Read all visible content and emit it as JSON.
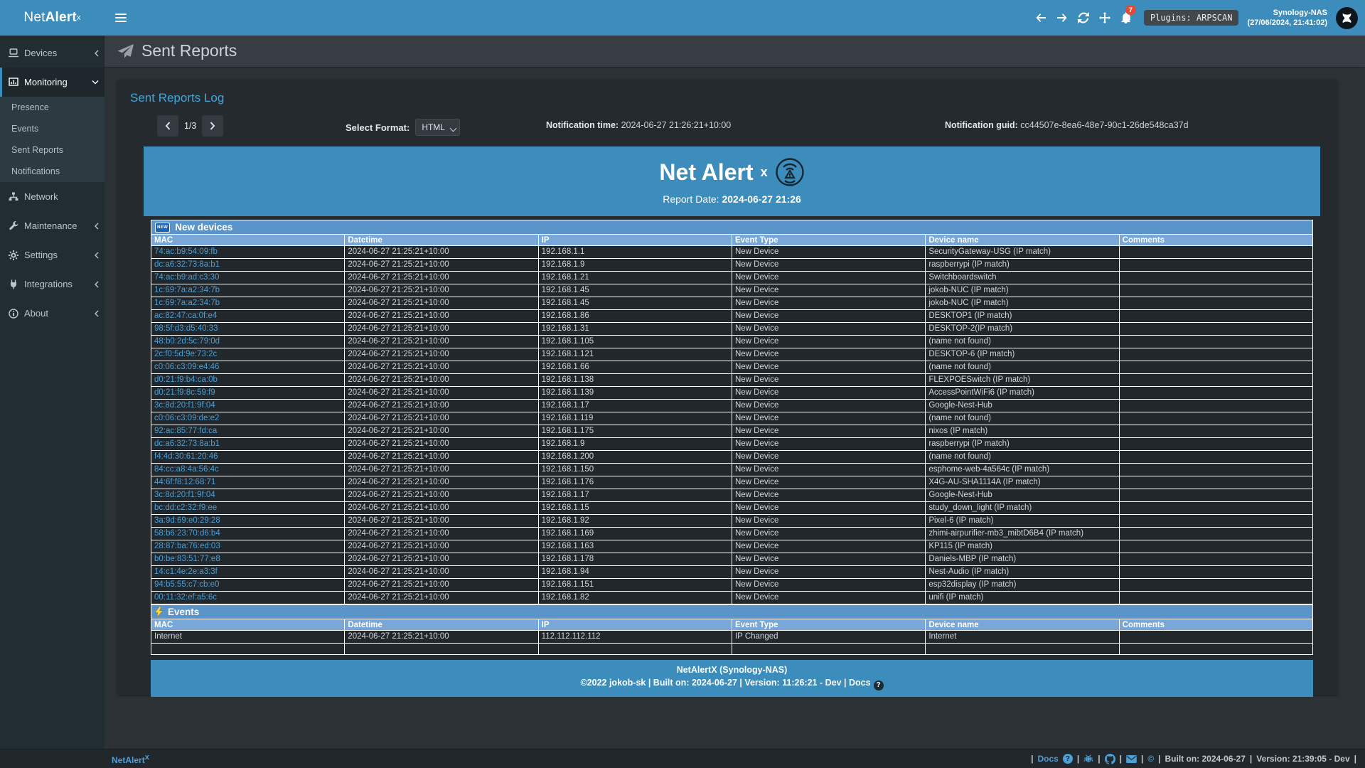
{
  "colors": {
    "accent": "#3c8dbc",
    "link_blue": "#4d9fd6",
    "section_header_bg": "#5b94c9",
    "table_header_bg": "#78a7d8",
    "badge_red": "#dd4b39"
  },
  "topbar": {
    "brand_pre": "Net",
    "brand_bold": "Alert",
    "brand_sup": "x",
    "notification_count": "7",
    "plugins_badge": "Plugins: ARPSCAN",
    "host_name": "Synology-NAS",
    "host_time": "(27/06/2024, 21:41:02)"
  },
  "sidebar": {
    "items": [
      {
        "label": "Devices"
      },
      {
        "label": "Monitoring"
      },
      {
        "label": "Network"
      },
      {
        "label": "Maintenance"
      },
      {
        "label": "Settings"
      },
      {
        "label": "Integrations"
      },
      {
        "label": "About"
      }
    ],
    "monitoring_submenu": [
      {
        "label": "Presence"
      },
      {
        "label": "Events"
      },
      {
        "label": "Sent Reports"
      },
      {
        "label": "Notifications"
      }
    ]
  },
  "page": {
    "title": "Sent Reports",
    "box_title": "Sent Reports Log",
    "pagination": "1/3",
    "select_format_label": "Select Format:",
    "format_value": "HTML",
    "notification_time_label": "Notification time:",
    "notification_time_value": "2024-06-27 21:26:21+10:00",
    "notification_guid_label": "Notification guid:",
    "notification_guid_value": "cc44507e-8ea6-48e7-90c1-26de548ca37d"
  },
  "report": {
    "title_main": "Net Alert",
    "title_sup": "x",
    "date_label": "Report Date:",
    "date_value": "2024-06-27 21:26",
    "columns": [
      "MAC",
      "Datetime",
      "IP",
      "Event Type",
      "Device name",
      "Comments"
    ],
    "new_devices": {
      "section_title": "New devices",
      "badge": "NEW",
      "rows": [
        [
          "74:ac:b9:54:09:fb",
          "2024-06-27 21:25:21+10:00",
          "192.168.1.1",
          "New Device",
          "SecurityGateway-USG (IP match)",
          ""
        ],
        [
          "dc:a6:32:73:8a:b1",
          "2024-06-27 21:25:21+10:00",
          "192.168.1.9",
          "New Device",
          "raspberrypi (IP match)",
          ""
        ],
        [
          "74:ac:b9:ad:c3:30",
          "2024-06-27 21:25:21+10:00",
          "192.168.1.21",
          "New Device",
          "Switchboardswitch",
          ""
        ],
        [
          "1c:69:7a:a2:34:7b",
          "2024-06-27 21:25:21+10:00",
          "192.168.1.45",
          "New Device",
          "jokob-NUC (IP match)",
          ""
        ],
        [
          "1c:69:7a:a2:34:7b",
          "2024-06-27 21:25:21+10:00",
          "192.168.1.45",
          "New Device",
          "jokob-NUC (IP match)",
          ""
        ],
        [
          "ac:82:47:ca:0f:e4",
          "2024-06-27 21:25:21+10:00",
          "192.168.1.86",
          "New Device",
          "DESKTOP1 (IP match)",
          ""
        ],
        [
          "98:5f:d3:d5:40:33",
          "2024-06-27 21:25:21+10:00",
          "192.168.1.31",
          "New Device",
          "DESKTOP-2(IP match)",
          ""
        ],
        [
          "48:b0:2d:5c:79:0d",
          "2024-06-27 21:25:21+10:00",
          "192.168.1.105",
          "New Device",
          "(name not found)",
          ""
        ],
        [
          "2c:f0:5d:9e:73:2c",
          "2024-06-27 21:25:21+10:00",
          "192.168.1.121",
          "New Device",
          "DESKTOP-6 (IP match)",
          ""
        ],
        [
          "c0:06:c3:09:e4:46",
          "2024-06-27 21:25:21+10:00",
          "192.168.1.66",
          "New Device",
          "(name not found)",
          ""
        ],
        [
          "d0:21:f9:b4:ca:0b",
          "2024-06-27 21:25:21+10:00",
          "192.168.1.138",
          "New Device",
          "FLEXPOESwitch (IP match)",
          ""
        ],
        [
          "d0:21:f9:8c:59:f9",
          "2024-06-27 21:25:21+10:00",
          "192.168.1.139",
          "New Device",
          "AccessPointWiFi6 (IP match)",
          ""
        ],
        [
          "3c:8d:20:f1:9f:04",
          "2024-06-27 21:25:21+10:00",
          "192.168.1.17",
          "New Device",
          "Google-Nest-Hub",
          ""
        ],
        [
          "c0:06:c3:09:de:e2",
          "2024-06-27 21:25:21+10:00",
          "192.168.1.119",
          "New Device",
          "(name not found)",
          ""
        ],
        [
          "92:ac:85:77:fd:ca",
          "2024-06-27 21:25:21+10:00",
          "192.168.1.175",
          "New Device",
          "nixos (IP match)",
          ""
        ],
        [
          "dc:a6:32:73:8a:b1",
          "2024-06-27 21:25:21+10:00",
          "192.168.1.9",
          "New Device",
          "raspberrypi (IP match)",
          ""
        ],
        [
          "f4:4d:30:61:20:46",
          "2024-06-27 21:25:21+10:00",
          "192.168.1.200",
          "New Device",
          "(name not found)",
          ""
        ],
        [
          "84:cc:a8:4a:56:4c",
          "2024-06-27 21:25:21+10:00",
          "192.168.1.150",
          "New Device",
          "esphome-web-4a564c (IP match)",
          ""
        ],
        [
          "44:6f:f8:12:68:71",
          "2024-06-27 21:25:21+10:00",
          "192.168.1.176",
          "New Device",
          "X4G-AU-SHA1114A (IP match)",
          ""
        ],
        [
          "3c:8d:20:f1:9f:04",
          "2024-06-27 21:25:21+10:00",
          "192.168.1.17",
          "New Device",
          "Google-Nest-Hub",
          ""
        ],
        [
          "bc:dd:c2:32:f9:ee",
          "2024-06-27 21:25:21+10:00",
          "192.168.1.15",
          "New Device",
          "study_down_light (IP match)",
          ""
        ],
        [
          "3a:9d:69:e0:29:28",
          "2024-06-27 21:25:21+10:00",
          "192.168.1.92",
          "New Device",
          "Pixel-6 (IP match)",
          ""
        ],
        [
          "58:b6:23:70:d6:b4",
          "2024-06-27 21:25:21+10:00",
          "192.168.1.169",
          "New Device",
          "zhimi-airpurifier-mb3_mibtD6B4 (IP match)",
          ""
        ],
        [
          "28:87:ba:76:ed:03",
          "2024-06-27 21:25:21+10:00",
          "192.168.1.163",
          "New Device",
          "KP115 (IP match)",
          ""
        ],
        [
          "b0:be:83:51:77:e8",
          "2024-06-27 21:25:21+10:00",
          "192.168.1.178",
          "New Device",
          "Daniels-MBP (IP match)",
          ""
        ],
        [
          "14:c1:4e:2e:a3:3f",
          "2024-06-27 21:25:21+10:00",
          "192.168.1.94",
          "New Device",
          "Nest-Audio (IP match)",
          ""
        ],
        [
          "94:b5:55:c7:cb:e0",
          "2024-06-27 21:25:21+10:00",
          "192.168.1.151",
          "New Device",
          "esp32display (IP match)",
          ""
        ],
        [
          "00:11:32:ef:a5:6c",
          "2024-06-27 21:25:21+10:00",
          "192.168.1.82",
          "New Device",
          "unifi (IP match)",
          ""
        ]
      ]
    },
    "events": {
      "section_title": "Events",
      "rows": [
        [
          "Internet",
          "2024-06-27 21:25:21+10:00",
          "112.112.112.112",
          "IP Changed",
          "Internet",
          ""
        ],
        [
          "",
          "",
          "",
          "",
          "",
          ""
        ]
      ]
    },
    "footer_line1": "NetAlertX (Synology-NAS)",
    "footer_line2": "©2022 jokob-sk | Built on: 2024-06-27 | Version: 11:26:21 - Dev | Docs",
    "footer_help": "?"
  },
  "statusbar": {
    "brand_pre": "Net",
    "brand_bold": "Alert",
    "brand_sup": "x",
    "sep": "|",
    "docs_label": "Docs",
    "help": "?",
    "copyright": "©",
    "built_label": "Built on: 2024-06-27",
    "version_label": "Version: 21:39:05 - Dev"
  }
}
